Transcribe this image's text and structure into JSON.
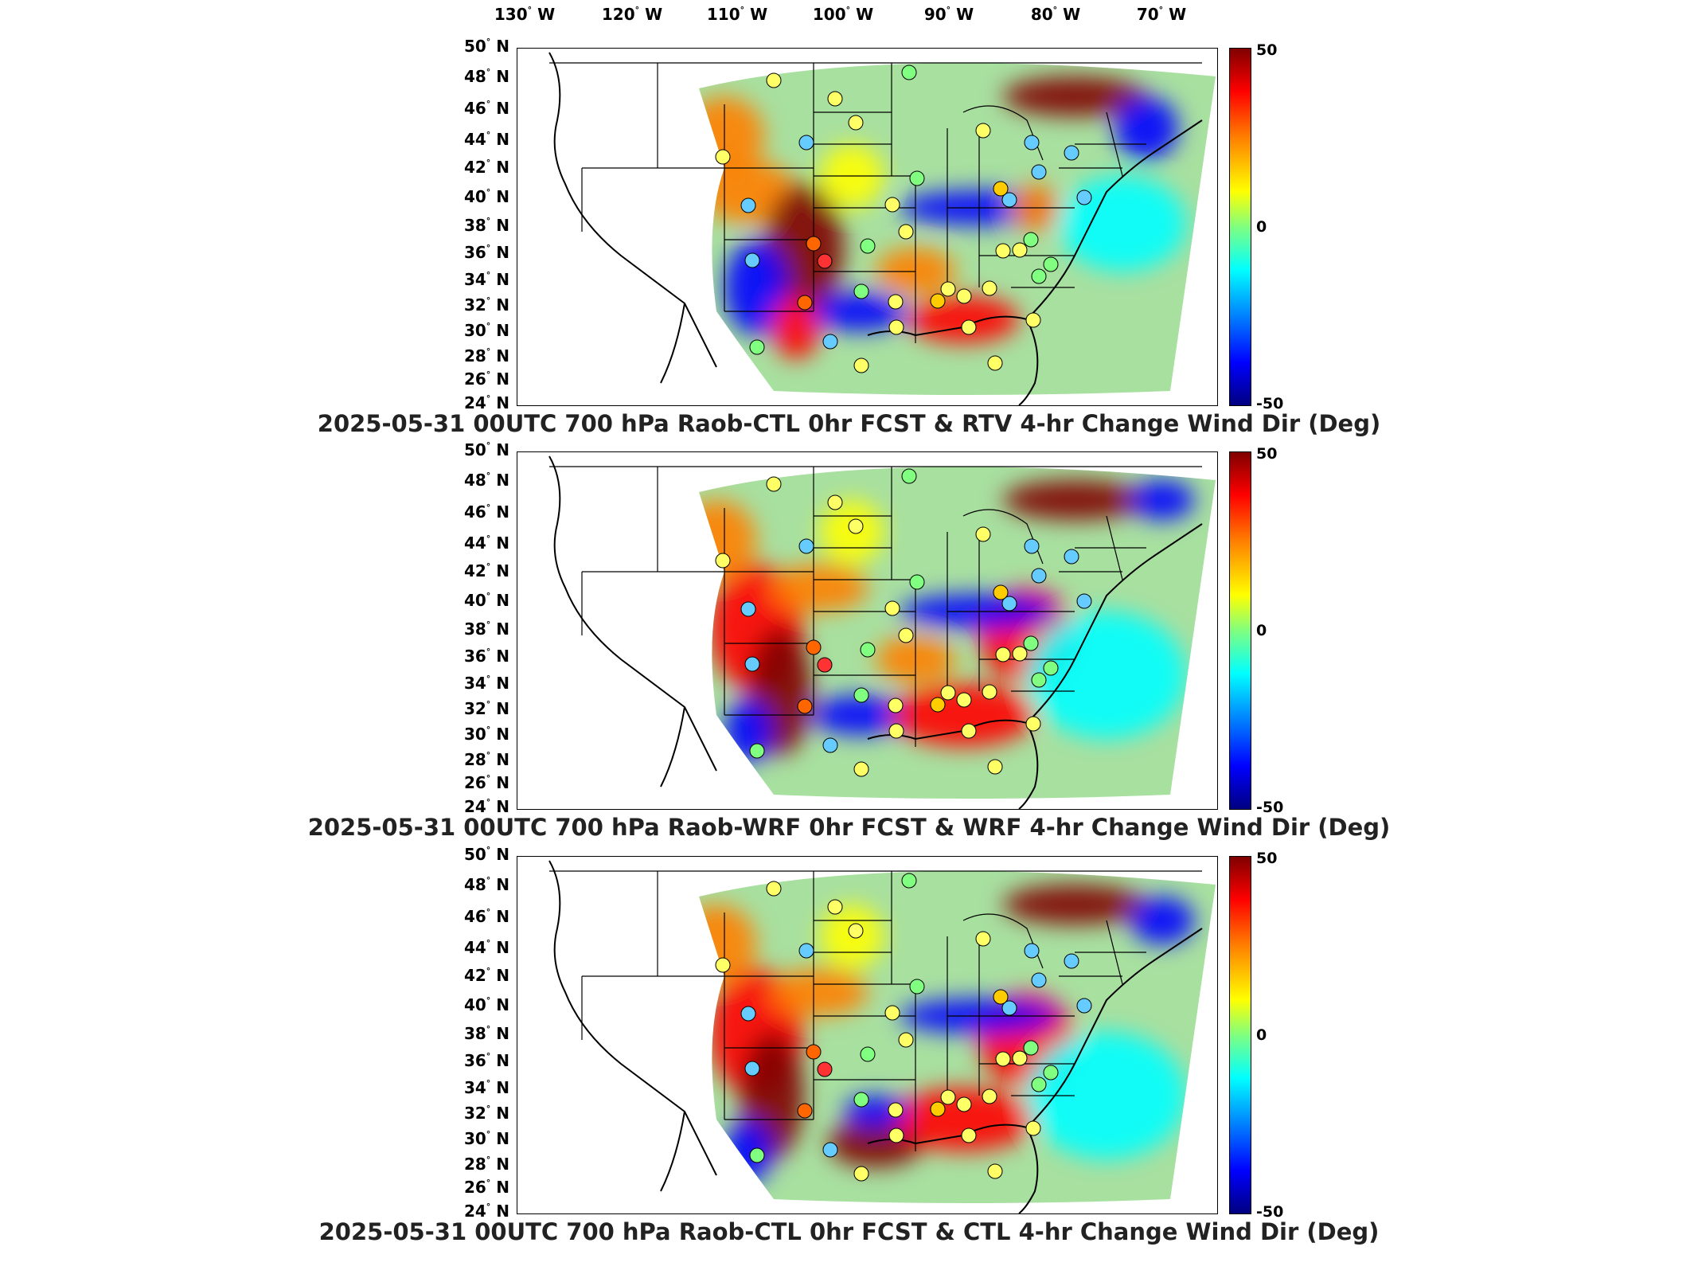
{
  "longitude_labels": [
    {
      "deg": "130",
      "hem": "W"
    },
    {
      "deg": "120",
      "hem": "W"
    },
    {
      "deg": "110",
      "hem": "W"
    },
    {
      "deg": "100",
      "hem": "W"
    },
    {
      "deg": "90",
      "hem": "W"
    },
    {
      "deg": "80",
      "hem": "W"
    },
    {
      "deg": "70",
      "hem": "W"
    }
  ],
  "latitude_labels": [
    {
      "deg": "50",
      "hem": "N"
    },
    {
      "deg": "48",
      "hem": "N"
    },
    {
      "deg": "46",
      "hem": "N"
    },
    {
      "deg": "44",
      "hem": "N"
    },
    {
      "deg": "42",
      "hem": "N"
    },
    {
      "deg": "40",
      "hem": "N"
    },
    {
      "deg": "38",
      "hem": "N"
    },
    {
      "deg": "36",
      "hem": "N"
    },
    {
      "deg": "34",
      "hem": "N"
    },
    {
      "deg": "32",
      "hem": "N"
    },
    {
      "deg": "30",
      "hem": "N"
    },
    {
      "deg": "28",
      "hem": "N"
    },
    {
      "deg": "26",
      "hem": "N"
    },
    {
      "deg": "24",
      "hem": "N"
    }
  ],
  "colorbar": {
    "max": "50",
    "mid": "0",
    "min": "-50"
  },
  "colors": {
    "dark_red": "#800000",
    "red": "#ff0000",
    "orange": "#ff8000",
    "yellow": "#ffff00",
    "green": "#80ff80",
    "cyan": "#00ffff",
    "blue": "#0000ff",
    "dark_blue": "#000080"
  },
  "panels": [
    {
      "caption": "2025-05-31 00UTC 700 hPa Raob-CTL 0hr FCST & RTV 4-hr Change Wind Dir (Deg)"
    },
    {
      "caption": "2025-05-31 00UTC 700 hPa Raob-WRF 0hr FCST & WRF 4-hr Change Wind Dir (Deg)"
    },
    {
      "caption": "2025-05-31 00UTC 700 hPa Raob-CTL 0hr FCST & CTL 4-hr Change Wind Dir (Deg)"
    }
  ]
}
